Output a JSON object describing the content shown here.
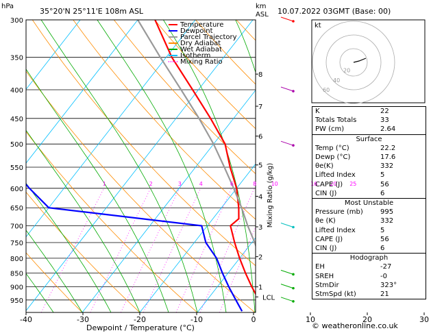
{
  "header": {
    "left_unit": "hPa",
    "location": "35°20'N  25°11'E  108m  ASL",
    "km_unit": "km",
    "asl": "ASL",
    "datetime": "10.07.2022  03GMT  (Base: 00)"
  },
  "legend": {
    "items": [
      {
        "label": "Temperature",
        "color": "#ff0000"
      },
      {
        "label": "Dewpoint",
        "color": "#0000ff"
      },
      {
        "label": "Parcel Trajectory",
        "color": "#999999"
      },
      {
        "label": "Dry Adiabat",
        "color": "#ff8c00"
      },
      {
        "label": "Wet Adiabat",
        "color": "#00aa00"
      },
      {
        "label": "Isotherm",
        "color": "#00bfff"
      },
      {
        "label": "Mixing Ratio",
        "color": "#ff00ff"
      }
    ]
  },
  "chart_data": {
    "type": "line",
    "xlabel": "Dewpoint / Temperature (°C)",
    "ylabel_right": "Mixing Ratio (g/kg)",
    "pressure_levels": [
      "300",
      "350",
      "400",
      "450",
      "500",
      "550",
      "600",
      "650",
      "700",
      "750",
      "800",
      "850",
      "900",
      "950"
    ],
    "temperature_ticks": [
      "-40",
      "-30",
      "-20",
      "-10",
      "0",
      "10",
      "20",
      "30"
    ],
    "km_ticks": [
      {
        "label": "8",
        "p": 375
      },
      {
        "label": "7",
        "p": 428
      },
      {
        "label": "6",
        "p": 484
      },
      {
        "label": "5",
        "p": 545
      },
      {
        "label": "4",
        "p": 620
      },
      {
        "label": "3",
        "p": 703
      },
      {
        "label": "2",
        "p": 795
      },
      {
        "label": "1",
        "p": 900
      },
      {
        "label": "LCL",
        "p": 938
      }
    ],
    "mixing_ratio_labels": [
      "1",
      "2",
      "3",
      "4",
      "6",
      "8",
      "10",
      "16",
      "20",
      "25"
    ],
    "mixing_ratio_values": [
      1,
      2,
      3,
      4,
      6,
      8,
      10,
      16,
      20,
      25
    ],
    "series": [
      {
        "name": "Temperature",
        "color": "#ff0000",
        "points": [
          [
            995,
            22.2
          ],
          [
            950,
            19
          ],
          [
            900,
            16
          ],
          [
            850,
            13
          ],
          [
            800,
            10
          ],
          [
            750,
            7
          ],
          [
            700,
            4
          ],
          [
            680,
            4.5
          ],
          [
            650,
            3
          ],
          [
            600,
            0
          ],
          [
            550,
            -4
          ],
          [
            500,
            -8
          ],
          [
            450,
            -14
          ],
          [
            400,
            -21
          ],
          [
            350,
            -29
          ],
          [
            300,
            -37
          ]
        ]
      },
      {
        "name": "Dewpoint",
        "color": "#0000ff",
        "points": [
          [
            995,
            17.6
          ],
          [
            950,
            15
          ],
          [
            900,
            12
          ],
          [
            850,
            9
          ],
          [
            800,
            6
          ],
          [
            750,
            2
          ],
          [
            700,
            -1
          ],
          [
            650,
            -30
          ],
          [
            600,
            -36
          ],
          [
            550,
            -42
          ],
          [
            500,
            -48
          ],
          [
            450,
            -48
          ],
          [
            400,
            -54
          ],
          [
            350,
            -56
          ],
          [
            300,
            -64
          ]
        ]
      },
      {
        "name": "Parcel Trajectory",
        "color": "#999999",
        "points": [
          [
            995,
            22.2
          ],
          [
            938,
            20
          ],
          [
            900,
            18.5
          ],
          [
            850,
            16.5
          ],
          [
            800,
            13.5
          ],
          [
            750,
            10.5
          ],
          [
            700,
            7
          ],
          [
            650,
            3.5
          ],
          [
            600,
            -0.5
          ],
          [
            550,
            -5
          ],
          [
            500,
            -10
          ],
          [
            450,
            -16
          ],
          [
            400,
            -23
          ],
          [
            350,
            -31
          ],
          [
            300,
            -40
          ]
        ]
      }
    ],
    "wind_barbs_p": [
      300,
      400,
      500,
      700,
      850,
      900,
      950
    ]
  },
  "hodograph": {
    "unit": "kt",
    "ring_labels": [
      "20",
      "40",
      "60"
    ]
  },
  "indices": {
    "rows": [
      {
        "label": "K",
        "value": "22"
      },
      {
        "label": "Totals Totals",
        "value": "33"
      },
      {
        "label": "PW (cm)",
        "value": "2.64"
      }
    ]
  },
  "surface": {
    "title": "Surface",
    "rows": [
      {
        "label": "Temp (°C)",
        "value": "22.2"
      },
      {
        "label": "Dewp (°C)",
        "value": "17.6"
      },
      {
        "label": "θe(K)",
        "value": "332"
      },
      {
        "label": "Lifted Index",
        "value": "5"
      },
      {
        "label": "CAPE (J)",
        "value": "56"
      },
      {
        "label": "CIN (J)",
        "value": "6"
      }
    ]
  },
  "most_unstable": {
    "title": "Most Unstable",
    "rows": [
      {
        "label": "Pressure (mb)",
        "value": "995"
      },
      {
        "label": "θe (K)",
        "value": "332"
      },
      {
        "label": "Lifted Index",
        "value": "5"
      },
      {
        "label": "CAPE (J)",
        "value": "56"
      },
      {
        "label": "CIN (J)",
        "value": "6"
      }
    ]
  },
  "hodo_panel": {
    "title": "Hodograph",
    "rows": [
      {
        "label": "EH",
        "value": "-27"
      },
      {
        "label": "SREH",
        "value": "-0"
      },
      {
        "label": "StmDir",
        "value": "323°"
      },
      {
        "label": "StmSpd (kt)",
        "value": "21"
      }
    ]
  },
  "footer": "© weatheronline.co.uk"
}
